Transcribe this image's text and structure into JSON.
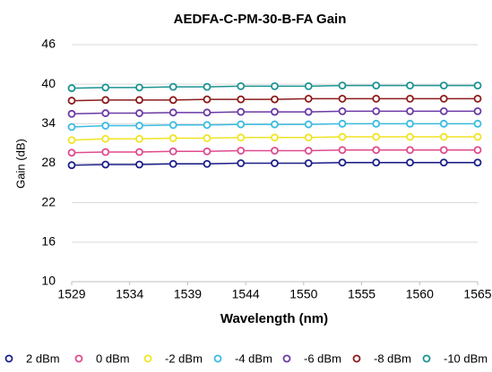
{
  "chart_data": {
    "type": "line",
    "title": "AEDFA-C-PM-30-B-FA Gain",
    "x_label": "Wavelength (nm)",
    "y_label": "Gain (dB)",
    "x": [
      1529,
      1532,
      1535,
      1538,
      1541,
      1544,
      1547,
      1550,
      1553,
      1556,
      1559,
      1562,
      1565
    ],
    "series": [
      {
        "name": "2 dBm",
        "color": "#1c1f8a",
        "values": [
          27.7,
          27.8,
          27.8,
          27.9,
          27.9,
          28.0,
          28.0,
          28.0,
          28.1,
          28.1,
          28.1,
          28.1,
          28.1
        ]
      },
      {
        "name": "0 dBm",
        "color": "#e04a8e",
        "values": [
          29.6,
          29.7,
          29.7,
          29.8,
          29.8,
          29.9,
          29.9,
          29.9,
          30.0,
          30.0,
          30.0,
          30.0,
          30.0
        ]
      },
      {
        "name": "-2 dBm",
        "color": "#f0e424",
        "values": [
          31.5,
          31.7,
          31.7,
          31.8,
          31.8,
          31.9,
          31.9,
          31.9,
          32.0,
          32.0,
          32.0,
          32.0,
          32.0
        ]
      },
      {
        "name": "-4 dBm",
        "color": "#3bbbe0",
        "values": [
          33.5,
          33.7,
          33.7,
          33.8,
          33.8,
          33.9,
          33.9,
          33.9,
          34.0,
          34.0,
          34.0,
          34.0,
          34.0
        ]
      },
      {
        "name": "-6 dBm",
        "color": "#6b3aa6",
        "values": [
          35.5,
          35.6,
          35.6,
          35.7,
          35.7,
          35.8,
          35.8,
          35.8,
          35.9,
          35.9,
          35.9,
          35.9,
          35.9
        ]
      },
      {
        "name": "-8 dBm",
        "color": "#8c1c1c",
        "values": [
          37.5,
          37.6,
          37.6,
          37.6,
          37.7,
          37.7,
          37.7,
          37.8,
          37.8,
          37.8,
          37.8,
          37.8,
          37.8
        ]
      },
      {
        "name": "-10 dBm",
        "color": "#1c9393",
        "values": [
          39.4,
          39.5,
          39.5,
          39.6,
          39.6,
          39.7,
          39.7,
          39.7,
          39.8,
          39.8,
          39.8,
          39.8,
          39.8
        ]
      }
    ],
    "xlim": [
      1529,
      1565
    ],
    "xticks": [
      {
        "value": 1529,
        "label": "1529"
      },
      {
        "value": 1534.14,
        "label": "1534"
      },
      {
        "value": 1539.29,
        "label": "1539"
      },
      {
        "value": 1544.43,
        "label": "1544"
      },
      {
        "value": 1549.57,
        "label": "1550"
      },
      {
        "value": 1554.71,
        "label": "1555"
      },
      {
        "value": 1559.86,
        "label": "1560"
      },
      {
        "value": 1565,
        "label": "1565"
      }
    ],
    "ylim": [
      10,
      46
    ],
    "yticks": [
      10,
      16,
      22,
      28,
      34,
      40,
      46
    ],
    "grid": true,
    "legend": "bottom"
  }
}
